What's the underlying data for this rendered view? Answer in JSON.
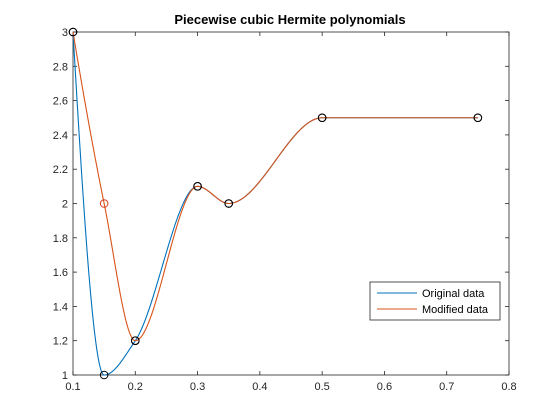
{
  "chart_data": {
    "type": "line",
    "title": "Piecewise cubic Hermite polynomials",
    "xlabel": "",
    "ylabel": "",
    "xlim": [
      0.1,
      0.8
    ],
    "ylim": [
      1,
      3
    ],
    "xticks": [
      "0.1",
      "0.2",
      "0.3",
      "0.4",
      "0.5",
      "0.6",
      "0.7",
      "0.8"
    ],
    "yticks": [
      "1",
      "1.2",
      "1.4",
      "1.6",
      "1.8",
      "2",
      "2.2",
      "2.4",
      "2.6",
      "2.8",
      "3"
    ],
    "grid": false,
    "legend_position": "bottom-right",
    "series": [
      {
        "name": "Original data",
        "color": "#0072BD",
        "x": [
          0.1,
          0.15,
          0.2,
          0.3,
          0.35,
          0.5,
          0.75
        ],
        "y": [
          3,
          1,
          1.2,
          2.1,
          2,
          2.5,
          2.5
        ],
        "marker_color": "#000000"
      },
      {
        "name": "Modified data",
        "color": "#D95319",
        "x": [
          0.1,
          0.15,
          0.2,
          0.3,
          0.35,
          0.5,
          0.75
        ],
        "y": [
          3,
          2,
          1.2,
          2.1,
          2,
          2.5,
          2.5
        ],
        "marker_color": "#000000",
        "highlight_point_index": 1,
        "highlight_color": "#D93A1A"
      }
    ]
  }
}
